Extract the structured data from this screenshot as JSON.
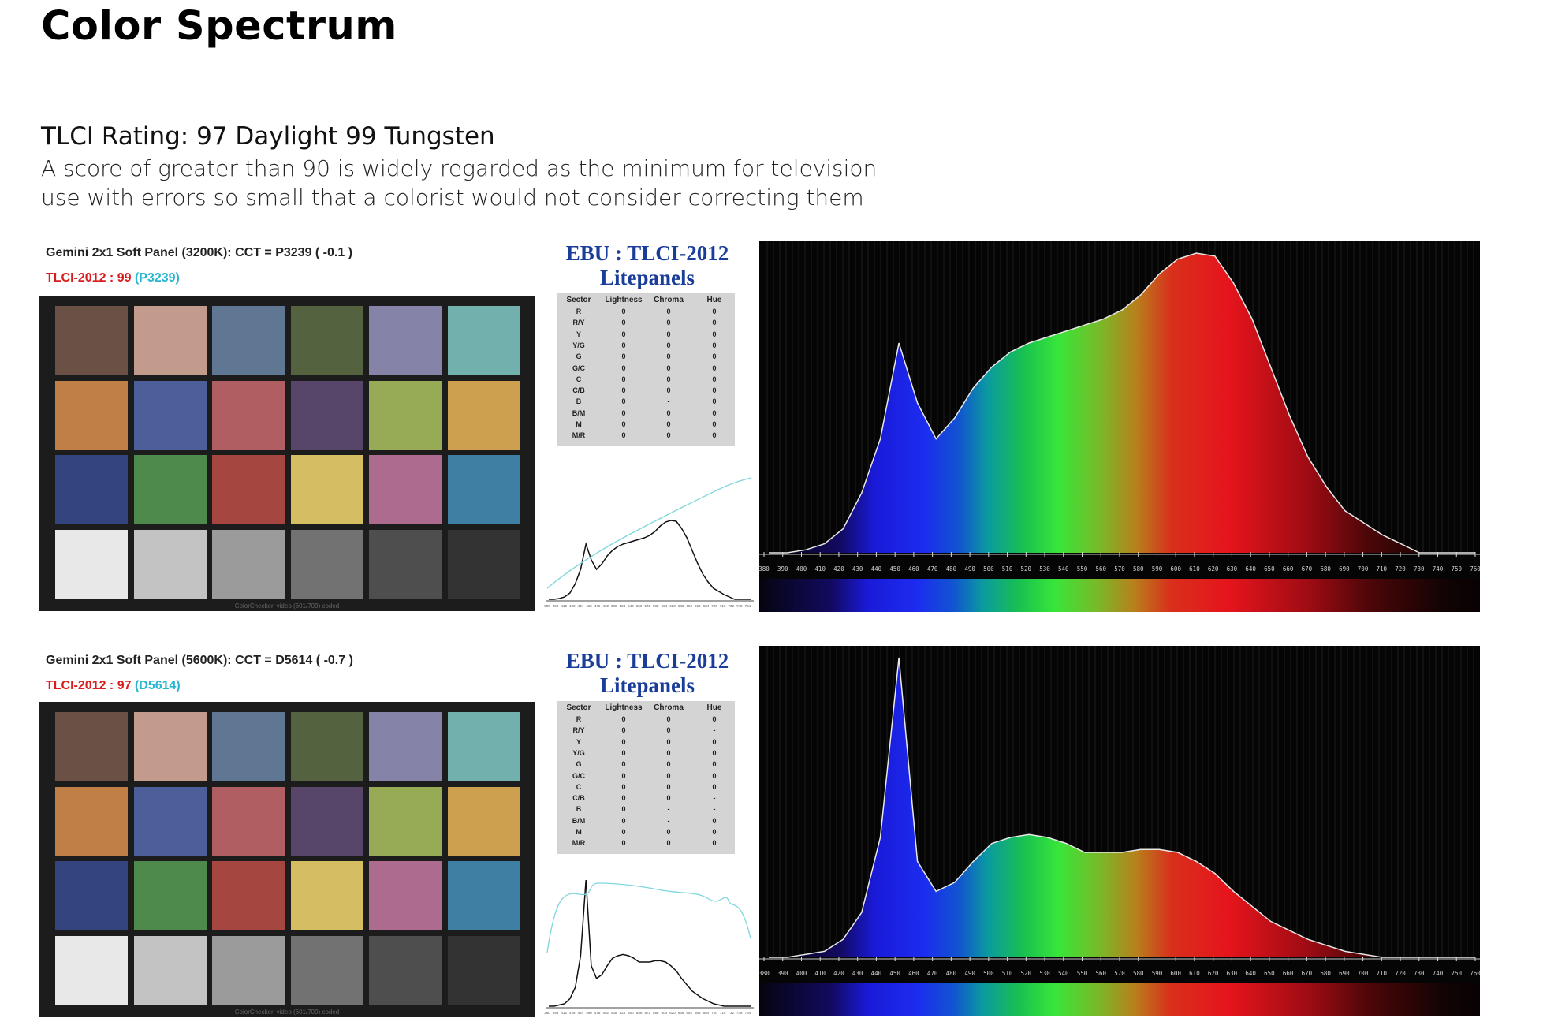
{
  "page": {
    "title": "Color Spectrum",
    "subheading": "TLCI Rating: 97 Daylight 99 Tungsten",
    "description_lines": [
      "A score of greater than 90 is widely regarded as the minimum for television",
      "use with errors so small that a colorist would not consider correcting them"
    ]
  },
  "panels": [
    {
      "checker_header": "Gemini 2x1 Soft Panel (3200K): CCT = P3239  (  -0.1 )",
      "tlci_label": "TLCI-2012 :",
      "tlci_value": "99",
      "tlci_ref": "(P3239)",
      "checker_footer": "ColorChecker, video (601/709) coded",
      "ebu_title_line1": "EBU : TLCI-2012",
      "ebu_title_line2": "Litepanels",
      "table_headers": [
        "Sector",
        "Lightness",
        "Chroma",
        "Hue"
      ],
      "table_sectors": [
        "R",
        "R/Y",
        "Y",
        "Y/G",
        "G",
        "G/C",
        "C",
        "C/B",
        "B",
        "B/M",
        "M",
        "M/R"
      ],
      "table_lightness": [
        "0",
        "0",
        "0",
        "0",
        "0",
        "0",
        "0",
        "0",
        "0",
        "0",
        "0",
        "0"
      ],
      "table_chroma": [
        "0",
        "0",
        "0",
        "0",
        "0",
        "0",
        "0",
        "0",
        "-",
        "0",
        "0",
        "0"
      ],
      "table_hue": [
        "0",
        "0",
        "0",
        "0",
        "0",
        "0",
        "0",
        "0",
        "0",
        "0",
        "0",
        "0"
      ]
    },
    {
      "checker_header": "Gemini 2x1 Soft Panel (5600K): CCT = D5614  (  -0.7 )",
      "tlci_label": "TLCI-2012 :",
      "tlci_value": "97",
      "tlci_ref": "(D5614)",
      "checker_footer": "ColorChecker, video (601/709) coded",
      "ebu_title_line1": "EBU : TLCI-2012",
      "ebu_title_line2": "Litepanels",
      "table_headers": [
        "Sector",
        "Lightness",
        "Chroma",
        "Hue"
      ],
      "table_sectors": [
        "R",
        "R/Y",
        "Y",
        "Y/G",
        "G",
        "G/C",
        "C",
        "C/B",
        "B",
        "B/M",
        "M",
        "M/R"
      ],
      "table_lightness": [
        "0",
        "0",
        "0",
        "0",
        "0",
        "0",
        "0",
        "0",
        "0",
        "0",
        "0",
        "0"
      ],
      "table_chroma": [
        "0",
        "0",
        "0",
        "0",
        "0",
        "0",
        "0",
        "0",
        "-",
        "-",
        "0",
        "0"
      ],
      "table_hue": [
        "0",
        "-",
        "0",
        "0",
        "0",
        "0",
        "0",
        "-",
        "-",
        "0",
        "0",
        "0"
      ]
    }
  ],
  "checker_colors": [
    "#6b5046",
    "#c29b8c",
    "#5f7793",
    "#54623f",
    "#8583a8",
    "#72b0ad",
    "#c07f46",
    "#4c5f9b",
    "#b05e62",
    "#58456a",
    "#97aa55",
    "#cda04f",
    "#33447f",
    "#4e8a4c",
    "#a64640",
    "#d5bd62",
    "#ad6b90",
    "#3f7fa4",
    "#e8e8e8",
    "#c3c3c3",
    "#9b9b9b",
    "#727272",
    "#4e4e4e",
    "#333333"
  ],
  "spectrum_axis_labels": [
    "380",
    "390",
    "400",
    "410",
    "420",
    "430",
    "440",
    "450",
    "460",
    "470",
    "480",
    "490",
    "500",
    "510",
    "520",
    "530",
    "540",
    "550",
    "560",
    "570",
    "580",
    "590",
    "600",
    "610",
    "620",
    "630",
    "640",
    "650",
    "660",
    "670",
    "680",
    "690",
    "700",
    "710",
    "720",
    "730",
    "740",
    "750",
    "760"
  ],
  "spectra": [
    [
      0.0,
      0.0,
      0.01,
      0.03,
      0.08,
      0.2,
      0.38,
      0.7,
      0.5,
      0.38,
      0.45,
      0.55,
      0.62,
      0.67,
      0.7,
      0.72,
      0.74,
      0.76,
      0.78,
      0.81,
      0.86,
      0.93,
      0.98,
      1.0,
      0.99,
      0.9,
      0.78,
      0.62,
      0.46,
      0.32,
      0.22,
      0.14,
      0.1,
      0.06,
      0.03,
      0.0,
      0.0,
      0.0,
      0.0
    ],
    [
      0.0,
      0.0,
      0.01,
      0.02,
      0.06,
      0.15,
      0.4,
      1.0,
      0.32,
      0.22,
      0.25,
      0.32,
      0.38,
      0.4,
      0.41,
      0.4,
      0.38,
      0.35,
      0.35,
      0.35,
      0.36,
      0.36,
      0.35,
      0.32,
      0.28,
      0.22,
      0.17,
      0.12,
      0.09,
      0.06,
      0.04,
      0.02,
      0.01,
      0.0,
      0.0,
      0.0,
      0.0,
      0.0,
      0.0
    ]
  ]
}
